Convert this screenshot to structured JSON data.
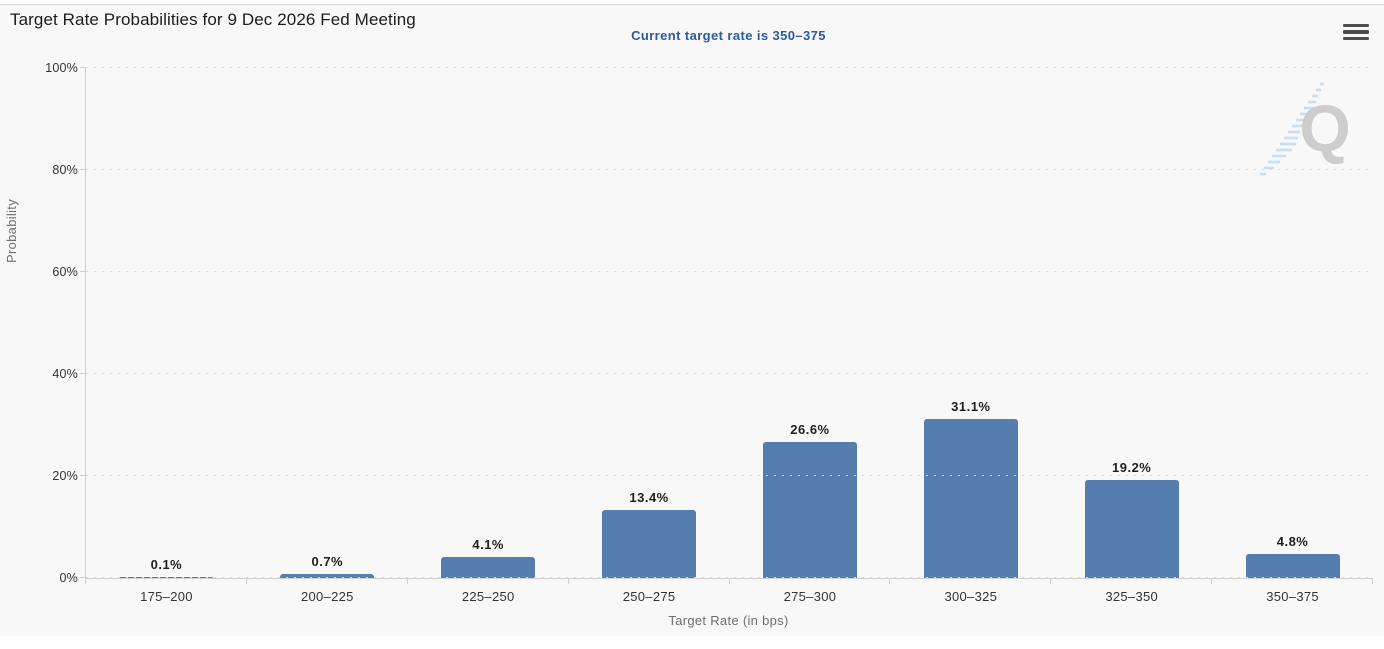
{
  "chart": {
    "title": "Target Rate Probabilities for 9 Dec 2026 Fed Meeting",
    "subtitle": "Current target rate is 350–375"
  },
  "chart_data": {
    "type": "bar",
    "title": "Target Rate Probabilities for 9 Dec 2026 Fed Meeting",
    "subtitle": "Current target rate is 350–375",
    "categories": [
      "175–200",
      "200–225",
      "225–250",
      "250–275",
      "275–300",
      "300–325",
      "325–350",
      "350–375"
    ],
    "values": [
      0.1,
      0.7,
      4.1,
      13.4,
      26.6,
      31.1,
      19.2,
      4.8
    ],
    "value_labels": [
      "0.1%",
      "0.7%",
      "4.1%",
      "13.4%",
      "26.6%",
      "31.1%",
      "19.2%",
      "4.8%"
    ],
    "xlabel": "Target Rate (in bps)",
    "ylabel": "Probability",
    "ylim": [
      0,
      100
    ],
    "ytick_step": 20,
    "ytick_labels": [
      "0%",
      "20%",
      "40%",
      "60%",
      "80%",
      "100%"
    ],
    "grid": "dotted-horizontal",
    "legend": "none",
    "bar_color": "#557EAE"
  },
  "colors": {
    "background": "#f8f8f8",
    "bar": "#557EAE",
    "subtitle_blue": "#2b5aa0",
    "axis_line": "#cfcfcf",
    "grid_dot": "#d8d8d8"
  },
  "watermark": {
    "name": "quikstrike-logo",
    "letter": "Q"
  }
}
